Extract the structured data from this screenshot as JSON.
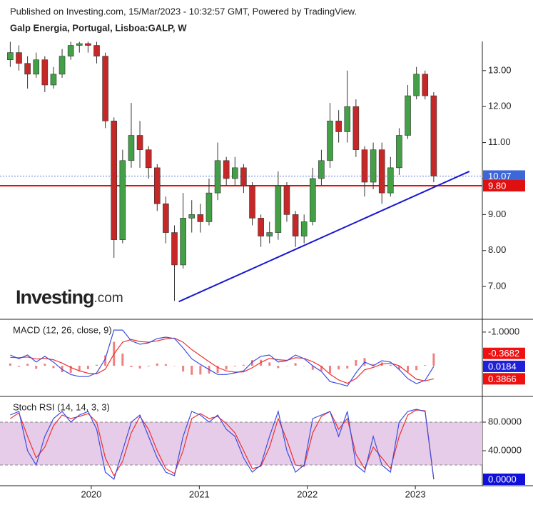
{
  "header": {
    "published": "Published on Investing.com, 15/Mar/2023 - 10:32:57 GMT, Powered by TradingView.",
    "symbol": "Galp Energia, Portugal, Lisboa:GALP, W"
  },
  "logo": {
    "brand": "Investing",
    "suffix": ".com"
  },
  "chart_data": [
    {
      "type": "candlestick",
      "xlim": [
        2019.155,
        2023.62
      ],
      "xticks": [
        2020,
        2021,
        2022,
        2023
      ],
      "ylim": [
        6.09,
        13.81
      ],
      "yticks": [
        {
          "value": 7,
          "label": "7.00"
        },
        {
          "value": 8,
          "label": "8.00"
        },
        {
          "value": 9,
          "label": "9.00"
        },
        {
          "value": 10,
          "label": "10.00"
        },
        {
          "value": 11,
          "label": "11.00"
        },
        {
          "value": 12,
          "label": "12.00"
        },
        {
          "value": 13,
          "label": "13.00"
        }
      ],
      "up_color": "#43a047",
      "down_color": "#c62828",
      "x": [
        2019.25,
        2019.33,
        2019.41,
        2019.49,
        2019.57,
        2019.65,
        2019.73,
        2019.81,
        2019.89,
        2019.97,
        2020.05,
        2020.13,
        2020.21,
        2020.29,
        2020.37,
        2020.45,
        2020.53,
        2020.61,
        2020.69,
        2020.77,
        2020.85,
        2020.93,
        2021.01,
        2021.09,
        2021.17,
        2021.25,
        2021.33,
        2021.41,
        2021.49,
        2021.57,
        2021.65,
        2021.73,
        2021.81,
        2021.89,
        2021.97,
        2022.05,
        2022.13,
        2022.21,
        2022.29,
        2022.37,
        2022.45,
        2022.53,
        2022.61,
        2022.69,
        2022.77,
        2022.85,
        2022.93,
        2023.01,
        2023.09,
        2023.17
      ],
      "open": [
        13.3,
        13.5,
        13.2,
        12.9,
        13.3,
        12.6,
        12.9,
        13.4,
        13.7,
        13.75,
        13.7,
        13.4,
        11.6,
        8.3,
        10.5,
        11.2,
        10.8,
        10.3,
        9.3,
        8.5,
        7.6,
        8.9,
        9.0,
        8.8,
        9.6,
        10.5,
        10.0,
        10.3,
        9.8,
        8.9,
        8.4,
        8.5,
        9.8,
        9.0,
        8.4,
        8.8,
        10.0,
        10.5,
        11.6,
        11.3,
        12.0,
        10.8,
        9.9,
        10.8,
        9.6,
        10.3,
        11.2,
        12.3,
        12.9,
        12.3
      ],
      "high": [
        13.8,
        13.7,
        13.4,
        13.5,
        13.4,
        13.1,
        13.6,
        13.8,
        13.8,
        13.8,
        13.8,
        13.5,
        11.7,
        10.8,
        12.1,
        11.6,
        10.9,
        10.4,
        9.5,
        8.7,
        9.6,
        9.4,
        9.3,
        10.0,
        11.0,
        10.6,
        10.6,
        10.4,
        9.9,
        9.0,
        8.8,
        10.2,
        9.9,
        9.1,
        9.0,
        10.3,
        10.8,
        12.1,
        11.9,
        13.0,
        12.2,
        10.9,
        11.0,
        11.0,
        10.6,
        11.4,
        12.6,
        13.1,
        13.0,
        12.4
      ],
      "low": [
        13.1,
        13.0,
        12.5,
        12.8,
        12.4,
        12.5,
        12.8,
        13.3,
        13.5,
        13.5,
        13.2,
        11.4,
        7.8,
        8.2,
        10.3,
        10.3,
        10.0,
        9.1,
        8.2,
        6.6,
        7.5,
        8.5,
        8.5,
        8.7,
        9.4,
        9.8,
        9.8,
        9.6,
        8.7,
        8.1,
        8.2,
        8.3,
        8.8,
        8.1,
        8.2,
        8.7,
        9.8,
        10.3,
        11.0,
        11.0,
        10.6,
        9.5,
        9.7,
        9.3,
        9.5,
        10.1,
        11.1,
        12.2,
        12.2,
        9.9
      ],
      "close": [
        13.5,
        13.2,
        12.9,
        13.3,
        12.6,
        12.9,
        13.4,
        13.7,
        13.75,
        13.7,
        13.4,
        11.6,
        8.3,
        10.5,
        11.2,
        10.8,
        10.3,
        9.3,
        8.5,
        7.6,
        8.9,
        9.0,
        8.8,
        9.6,
        10.5,
        10.0,
        10.3,
        9.8,
        8.9,
        8.4,
        8.5,
        9.8,
        9.0,
        8.4,
        8.8,
        10.0,
        10.5,
        11.6,
        11.3,
        12.0,
        10.8,
        9.9,
        10.8,
        9.6,
        10.3,
        11.2,
        12.3,
        12.9,
        12.3,
        10.07
      ],
      "trendline": {
        "x": [
          2020.81,
          2023.5
        ],
        "y": [
          6.58,
          10.2
        ],
        "color": "#1a1ad0"
      },
      "hlines": [
        {
          "value": 9.8,
          "color": "#e01010",
          "style": "solid"
        },
        {
          "value": 10.07,
          "color": "#5b7bd5",
          "style": "dotted"
        }
      ],
      "tags": [
        {
          "value": 10.07,
          "color": "#3d66d6"
        },
        {
          "value": 9.8,
          "label": "9.80",
          "color": "#e01010"
        }
      ]
    },
    {
      "type": "macd",
      "title": "MACD (12, 26, close, 9)",
      "ylim": [
        0.91,
        -1.38
      ],
      "yticks": [
        {
          "value": -1,
          "label": "-1.0000"
        }
      ],
      "macd": [
        -0.32,
        -0.21,
        -0.32,
        -0.11,
        -0.28,
        -0.11,
        0.11,
        0.26,
        0.32,
        0.32,
        0.21,
        -0.21,
        -1.06,
        -1.06,
        -0.74,
        -0.64,
        -0.68,
        -0.81,
        -0.85,
        -0.81,
        -0.53,
        -0.21,
        -0.04,
        0.11,
        0.26,
        0.26,
        0.21,
        0.15,
        -0.11,
        -0.28,
        -0.32,
        -0.11,
        -0.15,
        -0.32,
        -0.21,
        0,
        0.17,
        0.47,
        0.53,
        0.6,
        0.21,
        -0.11,
        0,
        -0.15,
        -0.11,
        0.11,
        0.38,
        0.53,
        0.43,
        0.0184
      ],
      "signal": [
        -0.25,
        -0.24,
        -0.26,
        -0.2,
        -0.22,
        -0.18,
        -0.08,
        0.05,
        0.15,
        0.22,
        0.24,
        0.1,
        -0.35,
        -0.7,
        -0.78,
        -0.72,
        -0.7,
        -0.74,
        -0.8,
        -0.82,
        -0.7,
        -0.48,
        -0.3,
        -0.12,
        0.05,
        0.15,
        0.19,
        0.18,
        0.06,
        -0.1,
        -0.22,
        -0.18,
        -0.16,
        -0.24,
        -0.22,
        -0.12,
        0.02,
        0.25,
        0.42,
        0.52,
        0.38,
        0.12,
        0.05,
        -0.05,
        -0.08,
        0.0,
        0.2,
        0.4,
        0.45,
        0.3866
      ],
      "histogram": [
        -0.07,
        0.03,
        -0.06,
        0.09,
        -0.06,
        0.07,
        0.19,
        0.21,
        0.17,
        0.1,
        -0.03,
        -0.31,
        -0.71,
        -0.36,
        0.04,
        0.08,
        0.02,
        -0.07,
        -0.05,
        0.01,
        0.17,
        0.27,
        0.26,
        0.23,
        0.21,
        0.11,
        0.02,
        -0.03,
        -0.17,
        -0.18,
        -0.1,
        0.07,
        0.01,
        -0.08,
        0.01,
        0.12,
        0.15,
        0.22,
        0.11,
        0.08,
        -0.17,
        -0.23,
        -0.05,
        -0.1,
        -0.03,
        0.11,
        0.18,
        0.13,
        -0.02,
        -0.3682
      ],
      "macd_color": "#3d4fe0",
      "signal_color": "#ef3030",
      "histogram_color": "#f08080",
      "tags": [
        {
          "value": 0.3866,
          "color": "#ef1010"
        },
        {
          "value": 0.0184,
          "color": "#2020d8"
        },
        {
          "value": -0.3682,
          "color": "#ef1010"
        }
      ]
    },
    {
      "type": "stoch",
      "title": "Stoch RSI (14, 14, 3, 3)",
      "ylim": [
        -9,
        116
      ],
      "band": [
        20,
        80
      ],
      "band_color": "#e6cce8",
      "yticks": [
        {
          "value": 80,
          "label": "80.0000"
        },
        {
          "value": 40,
          "label": "40.0000"
        }
      ],
      "k": [
        90,
        95,
        40,
        20,
        60,
        85,
        95,
        80,
        90,
        95,
        70,
        10,
        0,
        40,
        80,
        90,
        60,
        30,
        10,
        5,
        60,
        95,
        90,
        80,
        90,
        70,
        60,
        30,
        10,
        20,
        60,
        95,
        40,
        10,
        20,
        85,
        90,
        95,
        60,
        95,
        20,
        10,
        60,
        20,
        10,
        80,
        95,
        98,
        95,
        0
      ],
      "d": [
        85,
        93,
        60,
        30,
        45,
        75,
        90,
        85,
        88,
        92,
        80,
        30,
        5,
        25,
        65,
        88,
        70,
        40,
        15,
        8,
        40,
        85,
        92,
        85,
        88,
        78,
        65,
        40,
        15,
        18,
        45,
        85,
        55,
        20,
        18,
        65,
        88,
        95,
        70,
        85,
        35,
        15,
        45,
        30,
        15,
        60,
        90,
        97,
        96,
        0
      ],
      "k_color": "#3d4fe0",
      "d_color": "#ef3030",
      "tags": [
        {
          "value": 0,
          "label": "0.0000",
          "color": "#1010d8"
        }
      ]
    }
  ]
}
